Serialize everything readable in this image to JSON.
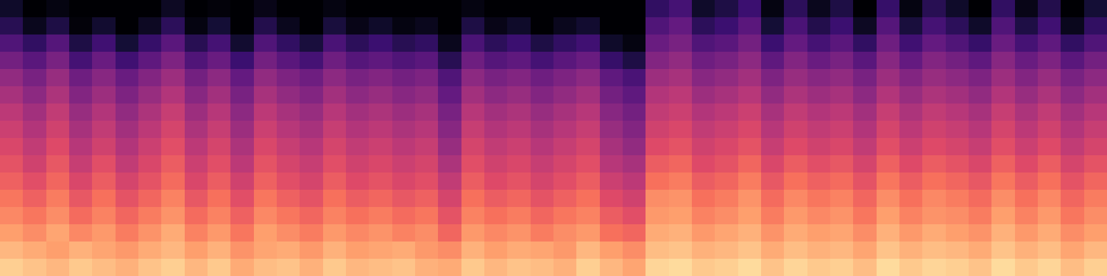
{
  "chart_data": {
    "type": "heatmap",
    "tick_labels": false,
    "zlim": [
      -80,
      0
    ],
    "z": [
      [
        -8,
        -10,
        -12,
        -9,
        -11,
        -13,
        -10,
        -8,
        -12,
        -9,
        -14,
        -11,
        -10,
        -13,
        -9,
        -12,
        -11,
        -10,
        -13,
        -14,
        -9,
        -12,
        -10,
        -11,
        -13,
        -8,
        -12,
        -15,
        -7,
        -6,
        -9,
        -8,
        -6,
        -10,
        -7,
        -9,
        -8,
        -11,
        -6,
        -9,
        -7,
        -8,
        -10,
        -6,
        -9,
        -7,
        -11,
        -8
      ],
      [
        -12,
        -14,
        -16,
        -13,
        -15,
        -17,
        -14,
        -12,
        -16,
        -13,
        -18,
        -15,
        -14,
        -17,
        -13,
        -16,
        -15,
        -14,
        -17,
        -19,
        -13,
        -16,
        -14,
        -15,
        -17,
        -12,
        -16,
        -19,
        -11,
        -10,
        -13,
        -12,
        -10,
        -14,
        -11,
        -13,
        -12,
        -15,
        -10,
        -13,
        -11,
        -12,
        -14,
        -10,
        -13,
        -11,
        -15,
        -12
      ],
      [
        -16,
        -19,
        -15,
        -20,
        -17,
        -22,
        -18,
        -14,
        -21,
        -17,
        -23,
        -16,
        -19,
        -22,
        -17,
        -20,
        -18,
        -21,
        -19,
        -26,
        -17,
        -20,
        -18,
        -22,
        -19,
        -17,
        -24,
        -26,
        -14,
        -13,
        -17,
        -15,
        -13,
        -18,
        -14,
        -16,
        -15,
        -19,
        -13,
        -17,
        -14,
        -16,
        -18,
        -13,
        -17,
        -14,
        -19,
        -16
      ],
      [
        -20,
        -23,
        -19,
        -25,
        -21,
        -26,
        -22,
        -18,
        -25,
        -21,
        -27,
        -20,
        -23,
        -26,
        -21,
        -24,
        -22,
        -25,
        -23,
        -30,
        -21,
        -24,
        -22,
        -26,
        -23,
        -21,
        -28,
        -31,
        -17,
        -16,
        -21,
        -19,
        -16,
        -22,
        -17,
        -20,
        -18,
        -23,
        -16,
        -21,
        -18,
        -19,
        -22,
        -16,
        -21,
        -17,
        -23,
        -19
      ],
      [
        -23,
        -27,
        -22,
        -29,
        -24,
        -30,
        -26,
        -21,
        -29,
        -24,
        -31,
        -23,
        -27,
        -30,
        -24,
        -28,
        -26,
        -29,
        -27,
        -34,
        -24,
        -28,
        -26,
        -30,
        -27,
        -24,
        -32,
        -35,
        -19,
        -18,
        -24,
        -22,
        -18,
        -25,
        -20,
        -23,
        -21,
        -26,
        -19,
        -24,
        -20,
        -22,
        -25,
        -19,
        -24,
        -20,
        -26,
        -22
      ],
      [
        -27,
        -31,
        -26,
        -33,
        -28,
        -34,
        -30,
        -25,
        -33,
        -28,
        -35,
        -27,
        -31,
        -34,
        -28,
        -32,
        -30,
        -33,
        -31,
        -38,
        -28,
        -32,
        -30,
        -34,
        -31,
        -28,
        -36,
        -39,
        -24,
        -22,
        -28,
        -26,
        -22,
        -29,
        -24,
        -27,
        -25,
        -30,
        -23,
        -28,
        -24,
        -26,
        -29,
        -23,
        -28,
        -24,
        -30,
        -26
      ],
      [
        -30,
        -35,
        -29,
        -37,
        -31,
        -38,
        -33,
        -28,
        -36,
        -31,
        -39,
        -30,
        -34,
        -37,
        -31,
        -35,
        -33,
        -36,
        -34,
        -42,
        -31,
        -35,
        -33,
        -37,
        -34,
        -31,
        -40,
        -43,
        -28,
        -26,
        -32,
        -30,
        -26,
        -33,
        -28,
        -31,
        -29,
        -34,
        -27,
        -32,
        -28,
        -30,
        -33,
        -27,
        -32,
        -28,
        -34,
        -30
      ],
      [
        -33,
        -38,
        -32,
        -40,
        -35,
        -41,
        -36,
        -31,
        -39,
        -34,
        -42,
        -33,
        -37,
        -40,
        -34,
        -38,
        -36,
        -39,
        -37,
        -46,
        -34,
        -38,
        -36,
        -40,
        -37,
        -34,
        -43,
        -47,
        -32,
        -30,
        -35,
        -33,
        -30,
        -37,
        -32,
        -35,
        -33,
        -38,
        -31,
        -36,
        -32,
        -34,
        -37,
        -31,
        -36,
        -32,
        -38,
        -34
      ],
      [
        -36,
        -41,
        -35,
        -43,
        -38,
        -44,
        -39,
        -34,
        -42,
        -37,
        -45,
        -36,
        -40,
        -43,
        -37,
        -41,
        -39,
        -42,
        -40,
        -49,
        -37,
        -41,
        -39,
        -43,
        -40,
        -37,
        -46,
        -50,
        -35,
        -33,
        -38,
        -36,
        -33,
        -40,
        -35,
        -38,
        -36,
        -41,
        -34,
        -39,
        -35,
        -37,
        -40,
        -34,
        -39,
        -35,
        -41,
        -37
      ],
      [
        -39,
        -44,
        -38,
        -46,
        -41,
        -47,
        -42,
        -37,
        -45,
        -40,
        -48,
        -39,
        -43,
        -46,
        -40,
        -44,
        -42,
        -45,
        -43,
        -52,
        -40,
        -44,
        -42,
        -46,
        -43,
        -40,
        -49,
        -53,
        -38,
        -36,
        -41,
        -39,
        -36,
        -43,
        -38,
        -41,
        -39,
        -44,
        -37,
        -42,
        -38,
        -40,
        -43,
        -37,
        -42,
        -38,
        -44,
        -40
      ],
      [
        -43,
        -48,
        -42,
        -50,
        -45,
        -51,
        -46,
        -41,
        -49,
        -44,
        -52,
        -43,
        -47,
        -50,
        -44,
        -48,
        -46,
        -49,
        -47,
        -56,
        -44,
        -48,
        -46,
        -50,
        -47,
        -44,
        -53,
        -57,
        -41,
        -39,
        -45,
        -43,
        -40,
        -47,
        -42,
        -45,
        -43,
        -48,
        -41,
        -46,
        -42,
        -44,
        -47,
        -41,
        -46,
        -42,
        -48,
        -44
      ],
      [
        -47,
        -52,
        -46,
        -54,
        -49,
        -55,
        -50,
        -45,
        -53,
        -48,
        -56,
        -47,
        -51,
        -54,
        -48,
        -52,
        -50,
        -53,
        -51,
        -60,
        -48,
        -52,
        -50,
        -54,
        -51,
        -48,
        -57,
        -61,
        -45,
        -43,
        -49,
        -47,
        -44,
        -51,
        -46,
        -49,
        -47,
        -52,
        -45,
        -50,
        -46,
        -48,
        -51,
        -45,
        -50,
        -46,
        -52,
        -48
      ],
      [
        -53,
        -58,
        -52,
        -62,
        -55,
        -63,
        -57,
        -51,
        -60,
        -55,
        -64,
        -53,
        -58,
        -62,
        -54,
        -59,
        -57,
        -60,
        -58,
        -68,
        -54,
        -59,
        -57,
        -62,
        -58,
        -55,
        -65,
        -70,
        -50,
        -47,
        -54,
        -52,
        -48,
        -57,
        -50,
        -55,
        -52,
        -58,
        -49,
        -56,
        -50,
        -53,
        -57,
        -49,
        -55,
        -51,
        -58,
        -53
      ],
      [
        -60,
        -66,
        -59,
        -70,
        -63,
        -72,
        -65,
        -58,
        -68,
        -62,
        -73,
        -60,
        -66,
        -71,
        -61,
        -67,
        -64,
        -68,
        -66,
        -76,
        -61,
        -67,
        -64,
        -70,
        -66,
        -63,
        -74,
        -78,
        -55,
        -52,
        -60,
        -58,
        -53,
        -64,
        -56,
        -62,
        -58,
        -66,
        -54,
        -63,
        -56,
        -60,
        -65,
        -55,
        -62,
        -57,
        -66,
        -60
      ],
      [
        -68,
        -76,
        -70,
        -79,
        -73,
        -80,
        -75,
        -67,
        -78,
        -72,
        -80,
        -69,
        -76,
        -80,
        -71,
        -77,
        -74,
        -78,
        -76,
        -80,
        -70,
        -77,
        -74,
        -80,
        -76,
        -73,
        -80,
        -80,
        -60,
        -56,
        -67,
        -64,
        -58,
        -72,
        -61,
        -69,
        -64,
        -75,
        -59,
        -71,
        -62,
        -67,
        -74,
        -60,
        -70,
        -63,
        -76,
        -66
      ],
      [
        -74,
        -80,
        -78,
        -80,
        -80,
        -80,
        -80,
        -75,
        -80,
        -79,
        -80,
        -77,
        -80,
        -80,
        -78,
        -80,
        -80,
        -80,
        -80,
        -80,
        -78,
        -80,
        -80,
        -80,
        -80,
        -80,
        -80,
        -80,
        -66,
        -62,
        -74,
        -70,
        -64,
        -78,
        -67,
        -76,
        -70,
        -80,
        -65,
        -78,
        -68,
        -74,
        -80,
        -66,
        -77,
        -69,
        -80,
        -72
      ]
    ]
  }
}
